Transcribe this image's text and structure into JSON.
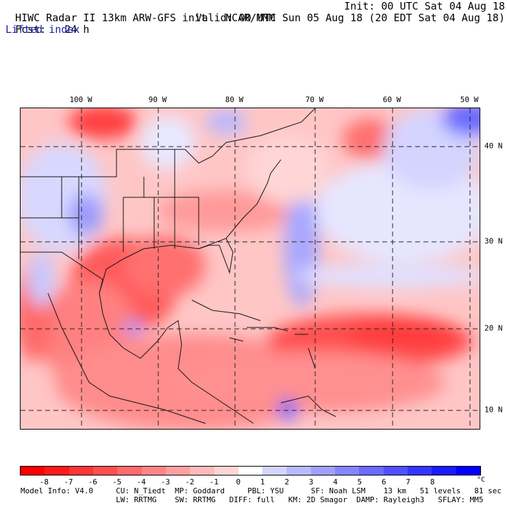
{
  "header": {
    "model": "HIWC Radar II 13km ARW-GFS init",
    "org": "NCAR/MMM",
    "init": "Init: 00 UTC Sat 04 Aug 18",
    "fcst_label": "Fcst:",
    "fcst_value": "24 h",
    "valid": "Valid: 00 UTC Sun 05 Aug 18 (20 EDT Sat 04 Aug 18)",
    "field": "Lifted index"
  },
  "map": {
    "lon_labels": [
      "100 W",
      "90 W",
      "80 W",
      "70 W",
      "60 W",
      "50 W"
    ],
    "lat_labels": [
      "40 N",
      "30 N",
      "20 N",
      "10 N"
    ]
  },
  "colorbar": {
    "ticks": [
      "-8",
      "-7",
      "-6",
      "-5",
      "-4",
      "-3",
      "-2",
      "-1",
      "0",
      "1",
      "2",
      "3",
      "4",
      "5",
      "6",
      "7",
      "8"
    ],
    "unit": "°C",
    "colors": [
      "#ff0000",
      "#ff1a1a",
      "#ff3535",
      "#ff5050",
      "#ff6a6a",
      "#ff8585",
      "#ffa0a0",
      "#ffbaba",
      "#ffd5d5",
      "#ffffff",
      "#d5d5ff",
      "#babaff",
      "#a0a0ff",
      "#8585ff",
      "#6a6aff",
      "#5050ff",
      "#3535ff",
      "#1a1aff",
      "#0000ff"
    ]
  },
  "footer": {
    "line1": "Model Info: V4.0     CU: N_Tiedt  MP: Goddard     PBL: YSU      SF: Noah LSM    13 km   51 levels   81 sec",
    "line2": "                     LW: RRTMG    SW: RRTMG   DIFF: full   KM: 2D Smagor  DAMP: Rayleigh3   SFLAY: MM5"
  }
}
